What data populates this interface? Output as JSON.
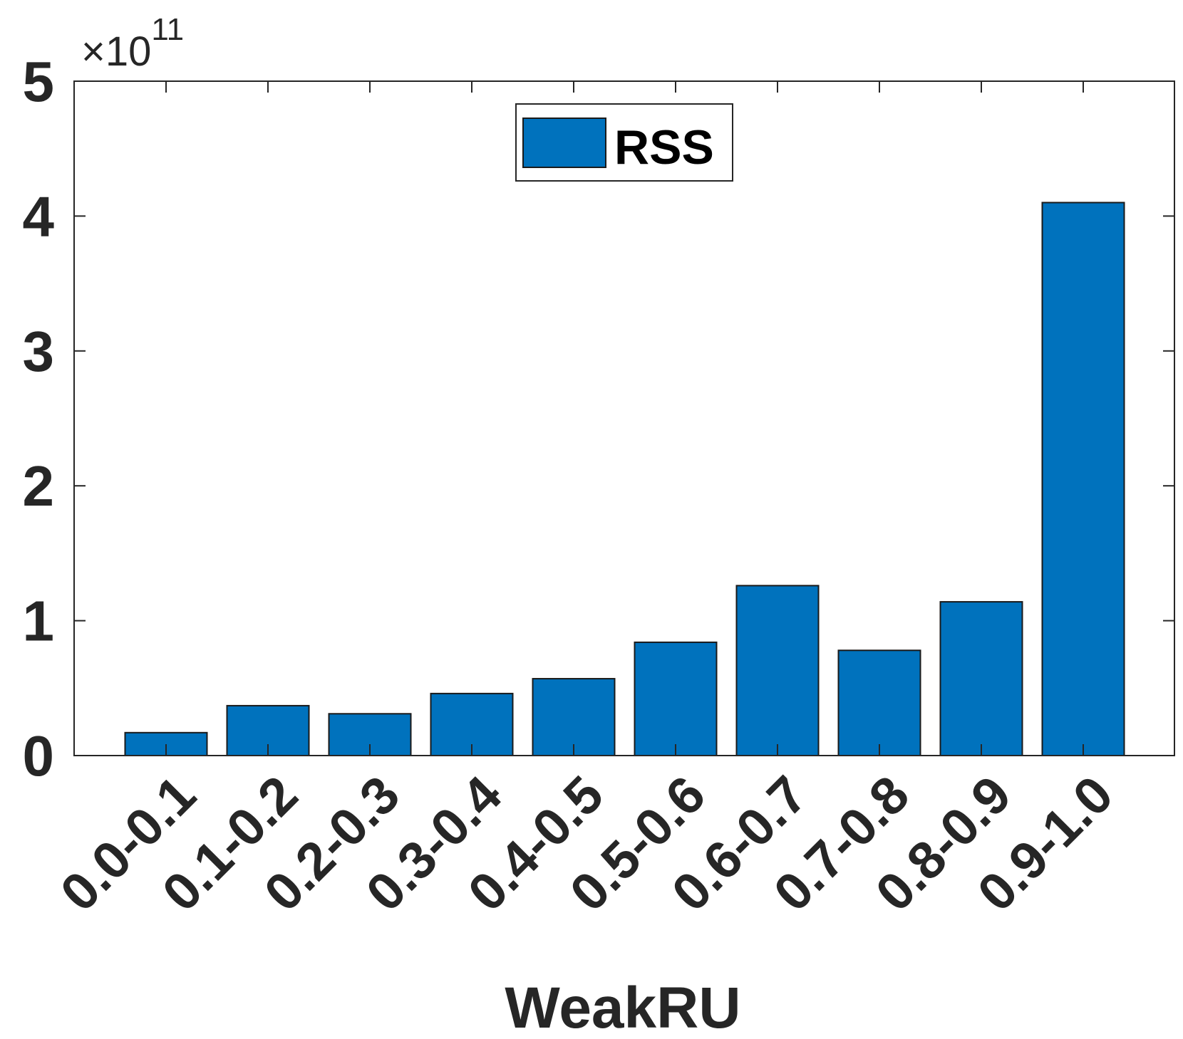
{
  "chart_data": {
    "type": "bar",
    "categories": [
      "0.0-0.1",
      "0.1-0.2",
      "0.2-0.3",
      "0.3-0.4",
      "0.4-0.5",
      "0.5-0.6",
      "0.6-0.7",
      "0.7-0.8",
      "0.8-0.9",
      "0.9-1.0"
    ],
    "series": [
      {
        "name": "RSS",
        "values": [
          17000000000.0,
          37000000000.0,
          31000000000.0,
          46000000000.0,
          57000000000.0,
          84000000000.0,
          126000000000.0,
          78000000000.0,
          114000000000.0,
          410000000000.0
        ]
      }
    ],
    "xlabel": "WeakRU",
    "ylabel": "",
    "ylim": [
      0,
      500000000000.0
    ],
    "yticks": [
      0,
      100000000000.0,
      200000000000.0,
      300000000000.0,
      400000000000.0,
      500000000000.0
    ],
    "ytick_labels": [
      "0",
      "1",
      "2",
      "3",
      "4",
      "5"
    ],
    "y_exponent_multiplier": "×10",
    "y_exponent_power": "11",
    "legend_position": "top-center",
    "grid": false,
    "colors": {
      "bar": "#0072BD",
      "bar_edge": "#1a1a1a",
      "axis": "#262626"
    }
  }
}
